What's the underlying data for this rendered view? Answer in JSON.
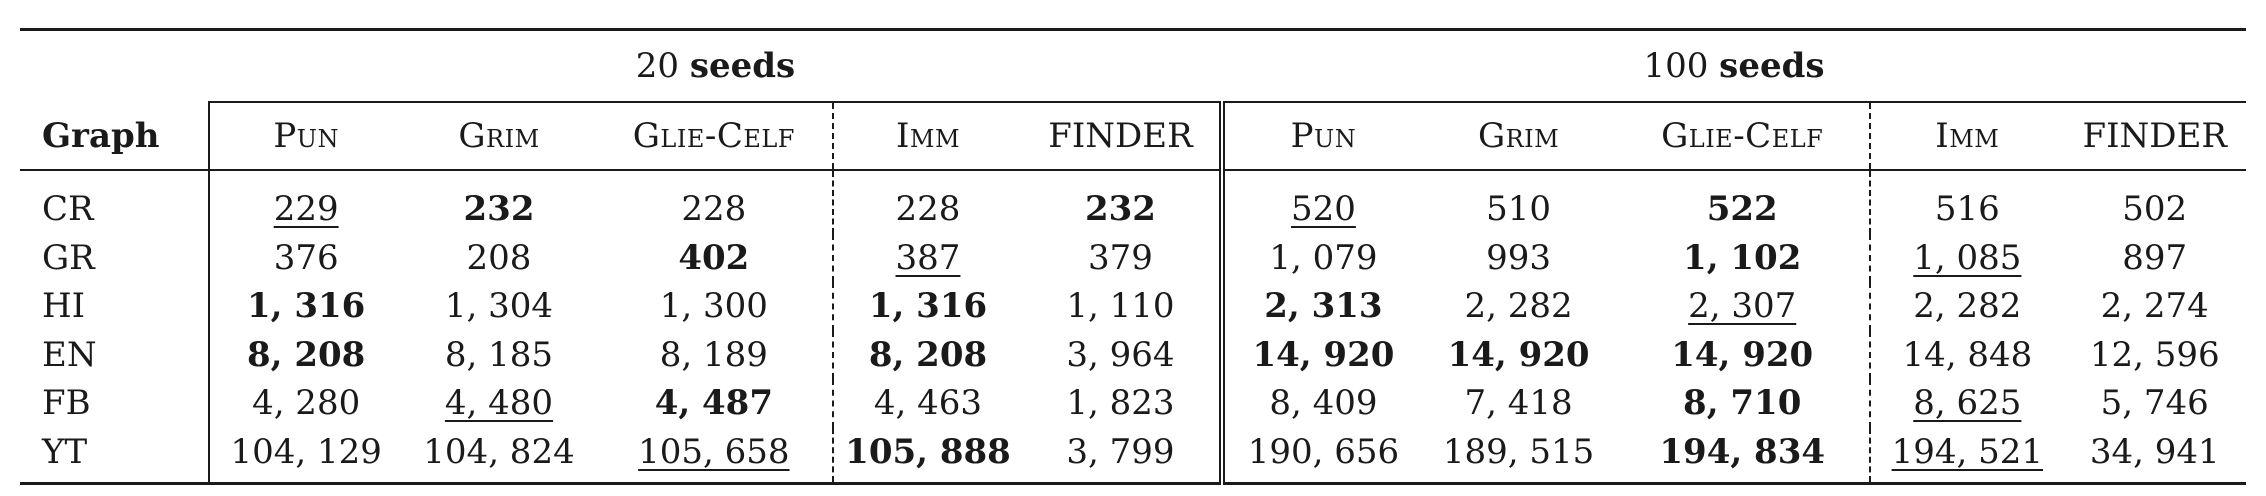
{
  "groups": [
    {
      "count": "20",
      "label": "seeds"
    },
    {
      "count": "100",
      "label": "seeds"
    }
  ],
  "header": {
    "graph": "Graph",
    "methods": [
      "Pun",
      "Grim",
      "Glie-Celf",
      "Imm",
      "FINDER",
      "Pun",
      "Grim",
      "Glie-Celf",
      "Imm",
      "FINDER"
    ]
  },
  "rows": [
    {
      "graph": "CR",
      "cells": [
        {
          "v": "229",
          "s": "u"
        },
        {
          "v": "232",
          "s": "b"
        },
        {
          "v": "228",
          "s": ""
        },
        {
          "v": "228",
          "s": ""
        },
        {
          "v": "232",
          "s": "b"
        },
        {
          "v": "520",
          "s": "u"
        },
        {
          "v": "510",
          "s": ""
        },
        {
          "v": "522",
          "s": "b"
        },
        {
          "v": "516",
          "s": ""
        },
        {
          "v": "502",
          "s": ""
        }
      ]
    },
    {
      "graph": "GR",
      "cells": [
        {
          "v": "376",
          "s": ""
        },
        {
          "v": "208",
          "s": ""
        },
        {
          "v": "402",
          "s": "b"
        },
        {
          "v": "387",
          "s": "u"
        },
        {
          "v": "379",
          "s": ""
        },
        {
          "v": "1, 079",
          "s": ""
        },
        {
          "v": "993",
          "s": ""
        },
        {
          "v": "1, 102",
          "s": "b"
        },
        {
          "v": "1, 085",
          "s": "u"
        },
        {
          "v": "897",
          "s": ""
        }
      ]
    },
    {
      "graph": "HI",
      "cells": [
        {
          "v": "1, 316",
          "s": "b"
        },
        {
          "v": "1, 304",
          "s": ""
        },
        {
          "v": "1, 300",
          "s": ""
        },
        {
          "v": "1, 316",
          "s": "b"
        },
        {
          "v": "1, 110",
          "s": ""
        },
        {
          "v": "2, 313",
          "s": "b"
        },
        {
          "v": "2, 282",
          "s": ""
        },
        {
          "v": "2, 307",
          "s": "u"
        },
        {
          "v": "2, 282",
          "s": ""
        },
        {
          "v": "2, 274",
          "s": ""
        }
      ]
    },
    {
      "graph": "EN",
      "cells": [
        {
          "v": "8, 208",
          "s": "b"
        },
        {
          "v": "8, 185",
          "s": ""
        },
        {
          "v": "8, 189",
          "s": ""
        },
        {
          "v": "8, 208",
          "s": "b"
        },
        {
          "v": "3, 964",
          "s": ""
        },
        {
          "v": "14, 920",
          "s": "b"
        },
        {
          "v": "14, 920",
          "s": "b"
        },
        {
          "v": "14, 920",
          "s": "b"
        },
        {
          "v": "14, 848",
          "s": ""
        },
        {
          "v": "12, 596",
          "s": ""
        }
      ]
    },
    {
      "graph": "FB",
      "cells": [
        {
          "v": "4, 280",
          "s": ""
        },
        {
          "v": "4, 480",
          "s": "u"
        },
        {
          "v": "4, 487",
          "s": "b"
        },
        {
          "v": "4, 463",
          "s": ""
        },
        {
          "v": "1, 823",
          "s": ""
        },
        {
          "v": "8, 409",
          "s": ""
        },
        {
          "v": "7, 418",
          "s": ""
        },
        {
          "v": "8, 710",
          "s": "b"
        },
        {
          "v": "8, 625",
          "s": "u"
        },
        {
          "v": "5, 746",
          "s": ""
        }
      ]
    },
    {
      "graph": "YT",
      "cells": [
        {
          "v": "104, 129",
          "s": ""
        },
        {
          "v": "104, 824",
          "s": ""
        },
        {
          "v": "105, 658",
          "s": "u"
        },
        {
          "v": "105, 888",
          "s": "b"
        },
        {
          "v": "3, 799",
          "s": ""
        },
        {
          "v": "190, 656",
          "s": ""
        },
        {
          "v": "189, 515",
          "s": ""
        },
        {
          "v": "194, 834",
          "s": "b"
        },
        {
          "v": "194, 521",
          "s": "u"
        },
        {
          "v": "34, 941",
          "s": ""
        }
      ]
    }
  ]
}
